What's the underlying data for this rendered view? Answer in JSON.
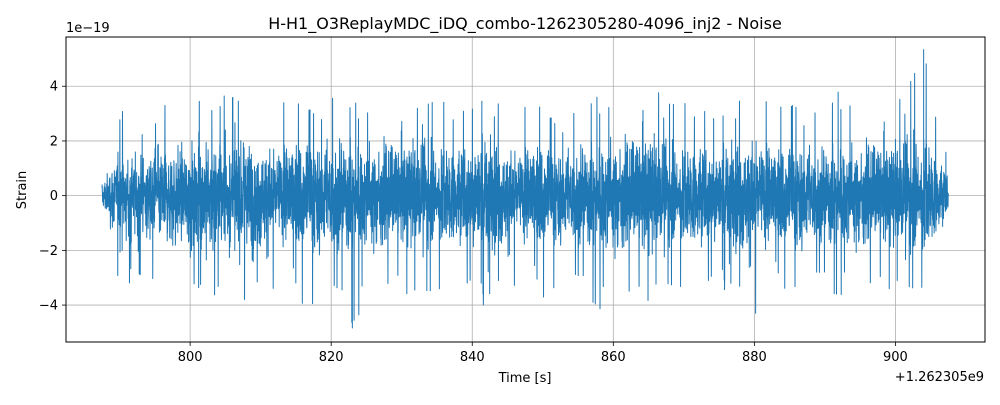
{
  "chart_data": {
    "type": "line",
    "title": "H-H1_O3ReplayMDC_iDQ_combo-1262305280-4096_inj2 - Noise",
    "xlabel": "Time [s]",
    "ylabel": "Strain",
    "x_offset_label": "+1.262305e9",
    "y_scale_label": "1e−19",
    "xlim": [
      782.4,
      912.7
    ],
    "ylim": [
      -5.35,
      5.8
    ],
    "x_ticks": [
      800,
      820,
      840,
      860,
      880,
      900
    ],
    "x_tick_labels": [
      "800",
      "820",
      "840",
      "860",
      "880",
      "900"
    ],
    "y_ticks": [
      -4,
      -2,
      0,
      2,
      4
    ],
    "y_tick_labels": [
      "−4",
      "−2",
      "0",
      "2",
      "4"
    ],
    "grid": true,
    "line_color": "#1f77b4",
    "series": [
      {
        "x_range": [
          787.5,
          907.5
        ],
        "y_min": -4.85,
        "y_max": 5.35,
        "envelope": {
          "x": [
            787.5,
            790,
            793,
            796,
            799,
            802,
            805,
            808,
            811,
            814,
            817,
            820,
            823,
            826,
            829,
            832,
            835,
            838,
            841,
            844,
            847,
            850,
            853,
            856,
            859,
            862,
            865,
            868,
            871,
            874,
            877,
            880,
            883,
            886,
            889,
            892,
            895,
            898,
            901,
            904,
            907.5
          ],
          "upper": [
            0.9,
            3.2,
            2.9,
            3.4,
            3.5,
            3.8,
            4.4,
            4.1,
            3.6,
            3.5,
            3.9,
            4.3,
            3.5,
            3.3,
            3.6,
            3.4,
            3.6,
            3.2,
            4.3,
            3.5,
            3.3,
            3.6,
            3.4,
            3.8,
            3.6,
            3.4,
            4.5,
            3.5,
            3.4,
            3.5,
            3.6,
            3.9,
            3.3,
            4.3,
            3.5,
            3.9,
            3.4,
            3.5,
            3.8,
            5.3,
            1.4
          ],
          "lower": [
            -0.9,
            -3.4,
            -3.0,
            -3.4,
            -3.8,
            -4.1,
            -4.4,
            -3.9,
            -3.6,
            -3.8,
            -4.3,
            -4.0,
            -4.85,
            -3.8,
            -3.4,
            -4.3,
            -3.6,
            -3.5,
            -4.5,
            -3.6,
            -3.5,
            -3.9,
            -3.4,
            -3.8,
            -4.5,
            -3.8,
            -4.2,
            -3.6,
            -3.4,
            -3.9,
            -3.6,
            -4.7,
            -3.5,
            -3.6,
            -3.5,
            -3.8,
            -3.4,
            -3.6,
            -3.9,
            -3.5,
            -1.5
          ]
        }
      }
    ]
  }
}
